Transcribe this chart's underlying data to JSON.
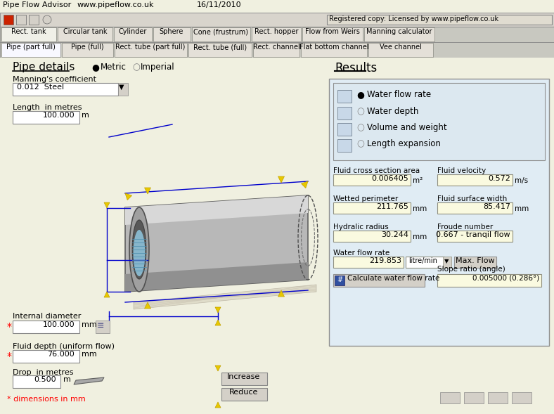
{
  "title_bar_left": "Pipe Flow Advisor",
  "title_bar_mid": "www.pipeflow.co.uk",
  "title_bar_date": "16/11/2010",
  "registered": "Registered copy: Licensed by www.pipeflow.co.uk",
  "bg_color": "#f0f0e0",
  "toolbar_bg": "#d4d0c8",
  "tab_row1": [
    "Rect. tank",
    "Circular tank",
    "Cylinder",
    "Sphere",
    "Cone (frustrum)",
    "Rect. hopper",
    "Flow from Weirs",
    "Manning calculator"
  ],
  "tab_row2": [
    "Pipe (part full)",
    "Pipe (full)",
    "Rect. tube (part full)",
    "Rect. tube (full)",
    "Rect. channel",
    "Flat bottom channel",
    "Vee channel"
  ],
  "section_left_title": "Pipe details",
  "metric_label": "Metric",
  "imperial_label": "Imperial",
  "manning_label": "Manning's coefficient",
  "manning_value": "0.012  Steel",
  "length_label": "Length  in metres",
  "length_value": "100.000",
  "length_unit": "m",
  "internal_diam_label": "Internal diameter",
  "internal_diam_value": "100.000",
  "internal_diam_unit": "mm",
  "fluid_depth_label": "Fluid depth (uniform flow)",
  "fluid_depth_value": "76.000",
  "fluid_depth_unit": "mm",
  "drop_label": "Drop  in metres",
  "drop_value": "0.500",
  "drop_unit": "m",
  "increase_btn": "Increase",
  "reduce_btn": "Reduce",
  "dimensions_note": "* dimensions in mm",
  "section_right_title": "Results",
  "radio_items": [
    "Water flow rate",
    "Water depth",
    "Volume and weight",
    "Length expansion"
  ],
  "field_labels": [
    "Fluid cross section area",
    "Fluid velocity",
    "Wetted perimeter",
    "Fluid surface width",
    "Hydralic radius",
    "Froude number",
    "Water flow rate"
  ],
  "field_values": [
    "0.006405",
    "0.572",
    "211.765",
    "85.417",
    "30.244",
    "0.667 - tranqil flow",
    "219.853"
  ],
  "field_units": [
    "m²",
    "m/s",
    "mm",
    "mm",
    "mm",
    "",
    "litre/min"
  ],
  "slope_label": "Slope ratio (angle)",
  "slope_value": "0.005000 (0.286°)",
  "calc_btn": "Calculate water flow rate",
  "max_flow_btn": "Max. Flow",
  "input_bg": "#fafae0",
  "results_box_bg": "#e0ecf4",
  "radio_box_bg": "#dce8f0",
  "blue_line": "#0000cc",
  "yellow_arrow": "#e8c800",
  "pipe_gray": "#a8a8a8",
  "water_blue": "#90c8e0",
  "white": "#ffffff",
  "btn_bg": "#d4d0c8"
}
